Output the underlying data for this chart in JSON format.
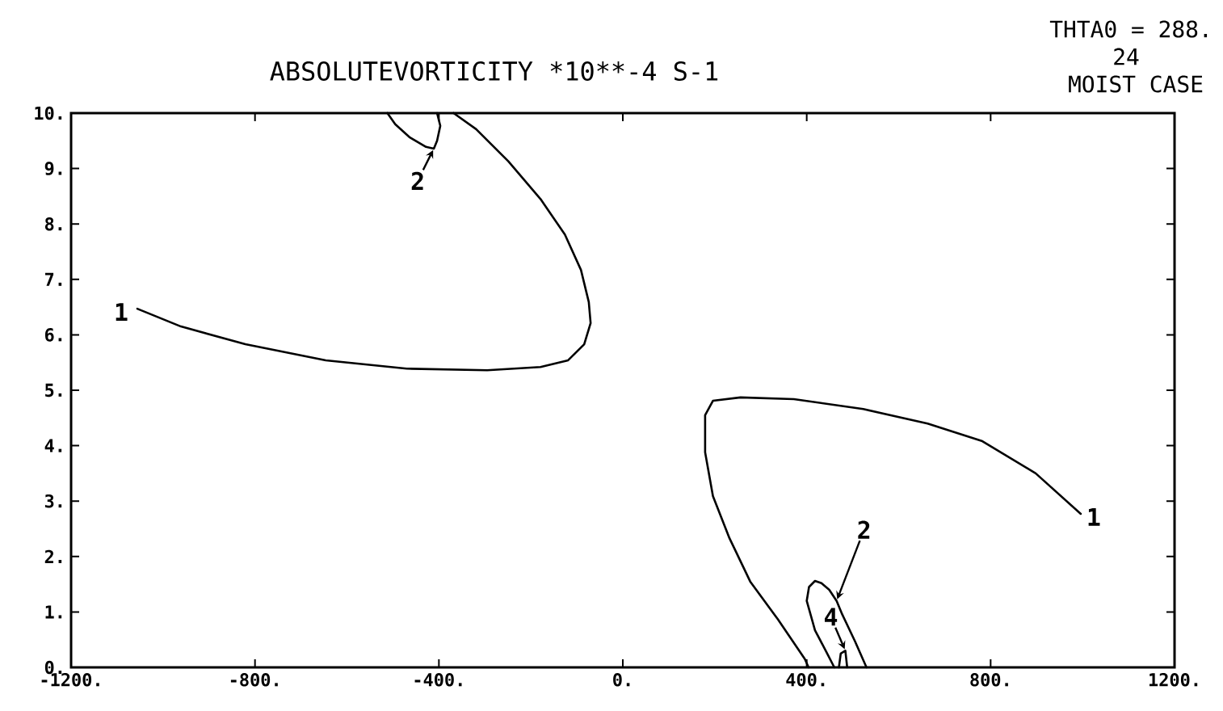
{
  "chart_data": {
    "type": "line",
    "title": "ABSOLUTEVORTICITY *10**-4 S-1",
    "annotations": [
      "THTA0 = 288.",
      "24",
      "MOIST CASE",
      {
        "text": "1",
        "x": -1056,
        "y": 6.47
      },
      {
        "text": "2",
        "x": -411,
        "y": 9.36
      },
      {
        "text": "1",
        "x": 996,
        "y": 2.77
      },
      {
        "text": "2",
        "x": 465,
        "y": 1.2
      },
      {
        "text": "4",
        "x": 484,
        "y": 0.3
      }
    ],
    "xlim": [
      -1200,
      1200
    ],
    "ylim": [
      0,
      10
    ],
    "xticks": [
      {
        "value": -1200,
        "label": "-1200."
      },
      {
        "value": -800,
        "label": "-800."
      },
      {
        "value": -400,
        "label": "-400."
      },
      {
        "value": 0,
        "label": "0."
      },
      {
        "value": 400,
        "label": "400."
      },
      {
        "value": 800,
        "label": "800."
      },
      {
        "value": 1200,
        "label": "1200."
      }
    ],
    "yticks": [
      {
        "value": 0,
        "label": "0."
      },
      {
        "value": 1,
        "label": "1."
      },
      {
        "value": 2,
        "label": "2."
      },
      {
        "value": 3,
        "label": "3."
      },
      {
        "value": 4,
        "label": "4."
      },
      {
        "value": 5,
        "label": "5."
      },
      {
        "value": 6,
        "label": "6."
      },
      {
        "value": 7,
        "label": "7."
      },
      {
        "value": 8,
        "label": "8."
      },
      {
        "value": 9,
        "label": "9."
      },
      {
        "value": 10,
        "label": "10."
      }
    ],
    "series": [
      {
        "color": "#000000",
        "x": [
          -1056,
          -961,
          -821,
          -646,
          -470,
          -295,
          -179,
          -119,
          -84,
          -70,
          -74,
          -91,
          -126,
          -179,
          -249,
          -319,
          -368
        ],
        "values": [
          6.47,
          6.15,
          5.83,
          5.54,
          5.39,
          5.36,
          5.42,
          5.54,
          5.83,
          6.21,
          6.59,
          7.17,
          7.81,
          8.45,
          9.13,
          9.71,
          10
        ]
      },
      {
        "color": "#000000",
        "x": [
          -512,
          -495,
          -463,
          -428,
          -411,
          -404,
          -397,
          -404
        ],
        "values": [
          10,
          9.8,
          9.56,
          9.39,
          9.36,
          9.5,
          9.77,
          10
        ]
      },
      {
        "color": "#000000",
        "x": [
          996,
          898,
          782,
          663,
          523,
          372,
          256,
          196,
          179,
          179,
          196,
          232,
          277,
          337,
          396,
          404
        ],
        "values": [
          2.77,
          3.5,
          4.08,
          4.4,
          4.66,
          4.84,
          4.87,
          4.81,
          4.55,
          3.88,
          3.09,
          2.33,
          1.55,
          0.87,
          0.15,
          0
        ]
      },
      {
        "color": "#000000",
        "x": [
          460,
          442,
          418,
          400,
          405,
          418,
          432,
          449,
          465,
          477,
          505,
          530
        ],
        "values": [
          0,
          0.29,
          0.67,
          1.2,
          1.45,
          1.56,
          1.52,
          1.4,
          1.2,
          0.96,
          0.47,
          0
        ]
      },
      {
        "color": "#000000",
        "x": [
          470,
          474,
          484,
          488
        ],
        "values": [
          0,
          0.25,
          0.3,
          0
        ]
      }
    ]
  }
}
